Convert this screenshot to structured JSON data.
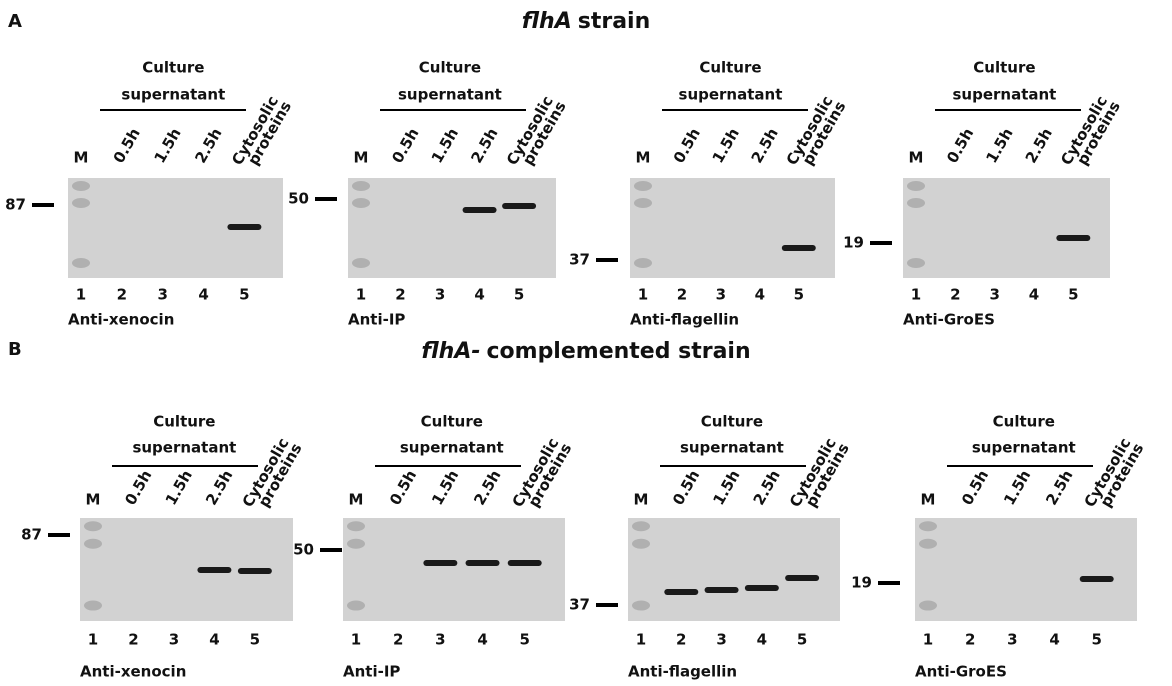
{
  "panels": [
    {
      "letter": "A",
      "title_italic": "flhA",
      "title_rest": "strain",
      "blots": [
        {
          "header": [
            "Culture",
            "supernatant"
          ],
          "lanes": [
            "M",
            "0.5h",
            "1.5h",
            "2.5h"
          ],
          "lane_last": [
            "Cytosolic",
            "proteins"
          ],
          "lane_numbers": [
            1,
            2,
            3,
            4,
            5
          ],
          "marker": 87,
          "antibody": "Anti-xenocin"
        },
        {
          "header": [
            "Culture",
            "supernatant"
          ],
          "lanes": [
            "M",
            "0.5h",
            "1.5h",
            "2.5h"
          ],
          "lane_last": [
            "Cytosolic",
            "proteins"
          ],
          "lane_numbers": [
            1,
            2,
            3,
            4,
            5
          ],
          "marker": 50,
          "antibody": "Anti-IP"
        },
        {
          "header": [
            "Culture",
            "supernatant"
          ],
          "lanes": [
            "M",
            "0.5h",
            "1.5h",
            "2.5h"
          ],
          "lane_last": [
            "Cytosolic",
            "proteins"
          ],
          "lane_numbers": [
            1,
            2,
            3,
            4,
            5
          ],
          "marker": 37,
          "antibody": "Anti-flagellin"
        },
        {
          "header": [
            "Culture",
            "supernatant"
          ],
          "lanes": [
            "M",
            "0.5h",
            "1.5h",
            "2.5h"
          ],
          "lane_last": [
            "Cytosolic",
            "proteins"
          ],
          "lane_numbers": [
            1,
            2,
            3,
            4,
            5
          ],
          "marker": 19,
          "antibody": "Anti-GroES"
        }
      ]
    },
    {
      "letter": "B",
      "title_italic": "flhA-",
      "title_rest": "complemented strain",
      "blots": [
        {
          "header": [
            "Culture",
            "supernatant"
          ],
          "lanes": [
            "M",
            "0.5h",
            "1.5h",
            "2.5h"
          ],
          "lane_last": [
            "Cytosolic",
            "proteins"
          ],
          "lane_numbers": [
            1,
            2,
            3,
            4,
            5
          ],
          "marker": 87,
          "antibody": "Anti-xenocin"
        },
        {
          "header": [
            "Culture",
            "supernatant"
          ],
          "lanes": [
            "M",
            "0.5h",
            "1.5h",
            "2.5h"
          ],
          "lane_last": [
            "Cytosolic",
            "proteins"
          ],
          "lane_numbers": [
            1,
            2,
            3,
            4,
            5
          ],
          "marker": 50,
          "antibody": "Anti-IP"
        },
        {
          "header": [
            "Culture",
            "supernatant"
          ],
          "lanes": [
            "M",
            "0.5h",
            "1.5h",
            "2.5h"
          ],
          "lane_last": [
            "Cytosolic",
            "proteins"
          ],
          "lane_numbers": [
            1,
            2,
            3,
            4,
            5
          ],
          "marker": 37,
          "antibody": "Anti-flagellin"
        },
        {
          "header": [
            "Culture",
            "supernatant"
          ],
          "lanes": [
            "M",
            "0.5h",
            "1.5h",
            "2.5h"
          ],
          "lane_last": [
            "Cytosolic",
            "proteins"
          ],
          "lane_numbers": [
            1,
            2,
            3,
            4,
            5
          ],
          "marker": 19,
          "antibody": "Anti-GroES"
        }
      ]
    }
  ]
}
